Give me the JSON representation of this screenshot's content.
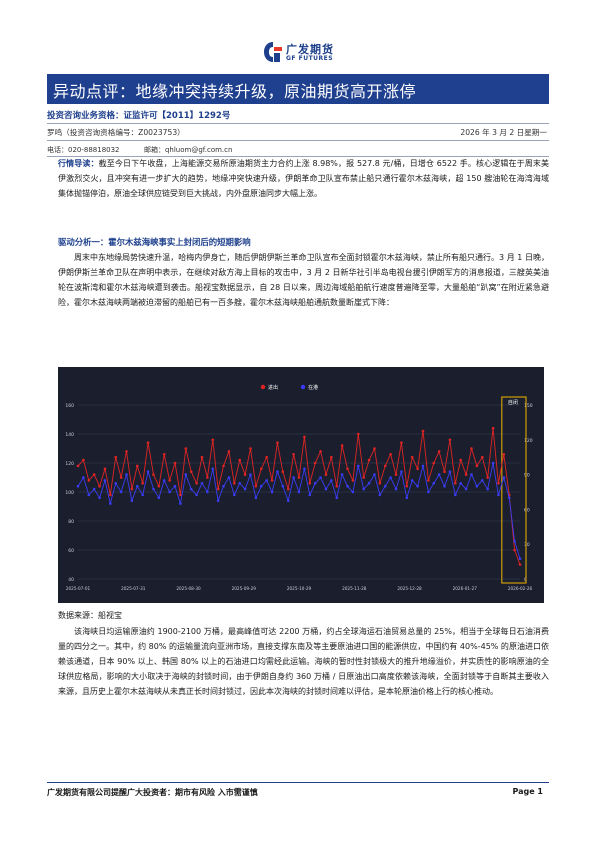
{
  "brand": {
    "name_cn": "广发期货",
    "name_en": "GF FUTURES",
    "accent": "#1f3f8f",
    "icon": "gf-futures-logo-icon"
  },
  "header": {
    "title": "异动点评：地缘冲突持续升级，原油期货高开涨停",
    "qualification": "投资咨询业务资格：证监许可【2011】1292号",
    "analyst": "罗鸣（投资咨询资格编号：Z0023753）",
    "date": "2026 年 3 月 2 日星期一",
    "phone": "电话：020-88818032",
    "email": "邮箱：qhluom@gf.com.cn"
  },
  "body": {
    "guide_lead": "行情导读：",
    "guide_text": "截至今日下午收盘，上海能源交易所原油期货主力合约上涨 8.98%，报 527.8 元/桶，日增仓 6522 手。核心逻辑在于周末美伊激烈交火，且冲突有进一步扩大的趋势，地缘冲突快速升级，伊朗革命卫队宣布禁止船只通行霍尔木兹海峡，超 150 艘油轮在海湾海域集体抛锚停泊，原油全球供应链受到巨大挑战，内外盘原油同步大幅上涨。",
    "section_title": "驱动分析一：霍尔木兹海峡事实上封闭后的短期影响",
    "para1": "周末中东地缘局势快速升温，哈梅内伊身亡，随后伊朗伊斯兰革命卫队宣布全面封锁霍尔木兹海峡，禁止所有船只通行。3 月 1 日晚，伊朗伊斯兰革命卫队在声明中表示，在继续对敌方海上目标的攻击中，3 月 2 日新华社引半岛电视台援引伊朗军方的消息报道，三艘英美油轮在波斯湾和霍尔木兹海峡遭到袭击。船视宝数据显示，自 28 日以来，周边海域船舶航行速度普遍降至零，大量船舶“趴窝”在附近紧急避险，霍尔木兹海峡两端被迫滞留的船舶已有一百多艘，霍尔木兹海峡船舶通航数量断崖式下降：",
    "source": "数据来源：船视宝",
    "para2": "该海峡日均运输原油约 1900-2100 万桶，最高峰值可达 2200 万桶，约占全球海运石油贸易总量的 25%，相当于全球每日石油消费量的四分之一。其中，约 80% 的运输量流向亚洲市场，直接支撑东南及等主要原油进口国的能源供应，中国约有 40%-45% 的原油进口依赖该通道，日本 90% 以上、韩国 80% 以上的石油进口均需经此运输。海峡的暂时性封锁极大的推升地缘溢价，并实质性的影响原油的全球供应格局，影响的大小取决于海峡的封锁时间，由于伊朗自身约 360 万桶 / 日原油出口高度依赖该海峡，全面封锁等于自断其主要收入来源，且历史上霍尔木兹海峡从未真正长时间封锁过，因此本次海峡的封锁时间难以评估，是本轮原油价格上行的核心推动。"
  },
  "chart_data": {
    "type": "line",
    "legend_position": "top-center",
    "grid": true,
    "title": "",
    "xlabel": "",
    "ylabel": "",
    "ylim": [
      40,
      160
    ],
    "y_ticks": [
      "40",
      "60",
      "80",
      "100",
      "120",
      "140",
      "160"
    ],
    "y2_ticks": [
      "0",
      "30",
      "60",
      "90",
      "120",
      "150"
    ],
    "x_ticks": [
      "2025-07-01",
      "2025-07-31",
      "2025-08-30",
      "2025-09-29",
      "2025-10-29",
      "2025-11-28",
      "2025-12-28",
      "2026-01-27",
      "2026-02-26"
    ],
    "series": [
      {
        "name": "进出",
        "color": "#e02424",
        "values": [
          118,
          122,
          108,
          112,
          104,
          116,
          98,
          124,
          110,
          128,
          102,
          118,
          106,
          134,
          112,
          104,
          126,
          108,
          120,
          98,
          130,
          114,
          106,
          124,
          110,
          136,
          102,
          118,
          128,
          106,
          122,
          112,
          130,
          104,
          116,
          124,
          108,
          134,
          114,
          102,
          126,
          110,
          138,
          106,
          120,
          128,
          112,
          124,
          104,
          132,
          116,
          108,
          140,
          110,
          122,
          130,
          106,
          118,
          126,
          112,
          134,
          104,
          124,
          116,
          142,
          108,
          120,
          128,
          114,
          136,
          106,
          122,
          112,
          130,
          118,
          124,
          110,
          144,
          106,
          126,
          98,
          60,
          50
        ]
      },
      {
        "name": "在港",
        "color": "#3a3cf5",
        "values": [
          104,
          110,
          98,
          102,
          96,
          108,
          92,
          106,
          100,
          112,
          94,
          104,
          98,
          114,
          102,
          96,
          108,
          100,
          104,
          92,
          112,
          102,
          98,
          106,
          100,
          116,
          94,
          104,
          110,
          98,
          106,
          102,
          112,
          96,
          104,
          108,
          100,
          114,
          104,
          94,
          110,
          100,
          116,
          98,
          106,
          110,
          102,
          108,
          96,
          112,
          104,
          100,
          118,
          102,
          106,
          112,
          98,
          104,
          110,
          102,
          114,
          96,
          108,
          104,
          118,
          100,
          106,
          112,
          104,
          114,
          98,
          106,
          102,
          112,
          104,
          108,
          102,
          120,
          98,
          110,
          96,
          66,
          54
        ]
      }
    ],
    "annotation": "自闭"
  }
}
